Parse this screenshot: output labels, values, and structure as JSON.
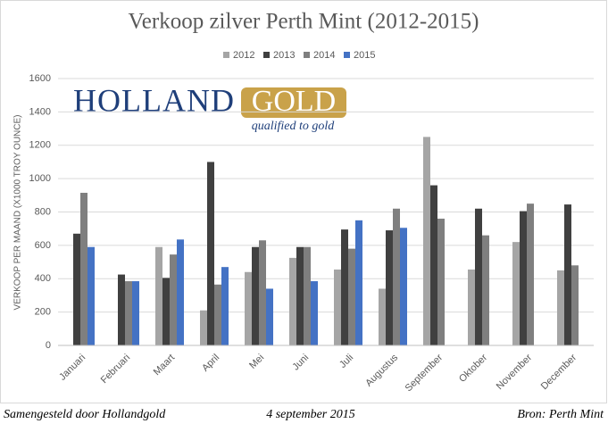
{
  "chart_data": {
    "type": "bar",
    "title": "Verkoop zilver Perth Mint (2012-2015)",
    "y_label": "VERKOOP PER MAAND (X1000 TROY OUNCE)",
    "categories": [
      "Januari",
      "Februari",
      "Maart",
      "April",
      "Mei",
      "Juni",
      "Juli",
      "Augustus",
      "September",
      "Oktober",
      "November",
      "December"
    ],
    "series": [
      {
        "name": "2012",
        "color": "#a5a5a5",
        "values": [
          null,
          null,
          590,
          210,
          440,
          525,
          455,
          340,
          1250,
          455,
          620,
          450
        ]
      },
      {
        "name": "2013",
        "color": "#404040",
        "values": [
          670,
          425,
          405,
          1100,
          590,
          590,
          695,
          690,
          960,
          820,
          805,
          845
        ]
      },
      {
        "name": "2014",
        "color": "#7f7f7f",
        "values": [
          915,
          385,
          545,
          365,
          630,
          590,
          580,
          820,
          760,
          660,
          850,
          480
        ]
      },
      {
        "name": "2015",
        "color": "#4472c4",
        "values": [
          590,
          385,
          635,
          470,
          340,
          385,
          750,
          705,
          null,
          null,
          null,
          null
        ]
      }
    ],
    "ylim": [
      0,
      1600
    ],
    "yticks": [
      0,
      200,
      400,
      600,
      800,
      1000,
      1200,
      1400,
      1600
    ],
    "grid": true,
    "legend": "top"
  },
  "logo": {
    "left": "HOLLAND",
    "right": "GOLD",
    "tagline": "qualified to gold"
  },
  "footer": {
    "left": "Samengesteld door Hollandgold",
    "center": "4 september 2015",
    "right": "Bron: Perth Mint"
  }
}
